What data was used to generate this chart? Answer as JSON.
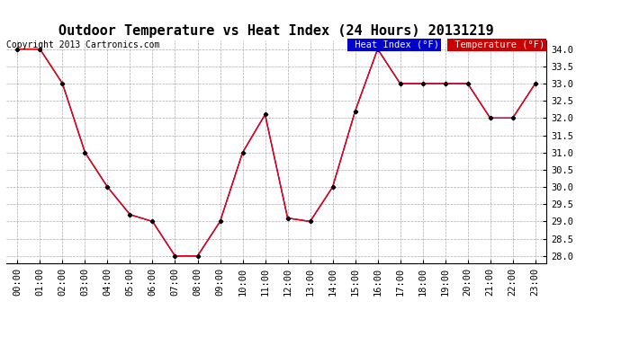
{
  "title": "Outdoor Temperature vs Heat Index (24 Hours) 20131219",
  "copyright": "Copyright 2013 Cartronics.com",
  "hours": [
    "00:00",
    "01:00",
    "02:00",
    "03:00",
    "04:00",
    "05:00",
    "06:00",
    "07:00",
    "08:00",
    "09:00",
    "10:00",
    "11:00",
    "12:00",
    "13:00",
    "14:00",
    "15:00",
    "16:00",
    "17:00",
    "18:00",
    "19:00",
    "20:00",
    "21:00",
    "22:00",
    "23:00"
  ],
  "temperature": [
    34.0,
    34.0,
    33.0,
    31.0,
    30.0,
    29.2,
    29.0,
    28.0,
    28.0,
    29.0,
    31.0,
    32.1,
    29.1,
    29.0,
    30.0,
    32.2,
    34.0,
    33.0,
    33.0,
    33.0,
    33.0,
    32.0,
    32.0,
    33.0
  ],
  "heat_index": [
    34.0,
    34.0,
    33.0,
    31.0,
    30.0,
    29.2,
    29.0,
    28.0,
    28.0,
    29.0,
    31.0,
    32.1,
    29.1,
    29.0,
    30.0,
    32.2,
    34.0,
    33.0,
    33.0,
    33.0,
    33.0,
    32.0,
    32.0,
    33.0
  ],
  "ylim_min": 27.8,
  "ylim_max": 34.25,
  "yticks": [
    28.0,
    28.5,
    29.0,
    29.5,
    30.0,
    30.5,
    31.0,
    31.5,
    32.0,
    32.5,
    33.0,
    33.5,
    34.0
  ],
  "temp_color": "#ff0000",
  "heat_index_color": "#0000bb",
  "bg_color": "#ffffff",
  "grid_color": "#aaaaaa",
  "legend_heat_bg": "#0000cc",
  "legend_temp_bg": "#cc0000",
  "legend_text_color": "#ffffff",
  "title_fontsize": 11,
  "copyright_fontsize": 7,
  "tick_fontsize": 7.5,
  "legend_fontsize": 7.5,
  "marker": "D",
  "marker_size": 2.5
}
